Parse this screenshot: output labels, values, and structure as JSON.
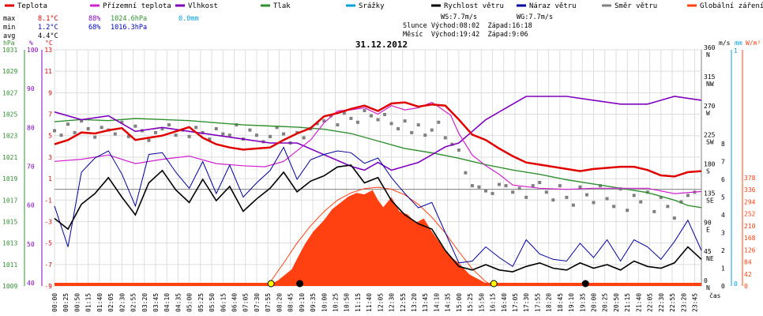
{
  "chart_data": {
    "type": "line",
    "title": "31.12.2012",
    "legend": [
      {
        "name": "Teplota",
        "color": "#e00000"
      },
      {
        "name": "Přízemní teplota",
        "color": "#d020d0"
      },
      {
        "name": "Vlhkost",
        "color": "#8000c0"
      },
      {
        "name": "Tlak",
        "color": "#309030"
      },
      {
        "name": "Srážky",
        "color": "#00a0e0"
      },
      {
        "name": "Rychlost větru",
        "color": "#000000"
      },
      {
        "name": "Náraz větru",
        "color": "#0000a0"
      },
      {
        "name": "Směr větru",
        "color": "#808080"
      },
      {
        "name": "Globální záření",
        "color": "#ff4010"
      }
    ],
    "stats": {
      "max": {
        "label": "max",
        "temp": "8.1°C",
        "hum": "88%",
        "press": "1024.6hPa",
        "rain": "0.0mm"
      },
      "min": {
        "label": "min",
        "temp": "1.2°C",
        "hum": "68%",
        "press": "1016.3hPa"
      },
      "avg": {
        "label": "avg",
        "temp": "4.4°C"
      }
    },
    "info": {
      "ws": "WS:7.7m/s",
      "wg": "WG:7.7m/s",
      "sun": "Slunce Východ:08:02  Západ:16:18",
      "moon": "Měsíc  Východ:19:42  Západ:9:06"
    },
    "axes": {
      "hpa": {
        "unit": "hPa",
        "ticks": [
          "1031",
          "1029",
          "1027",
          "1025",
          "1023",
          "1021",
          "1019",
          "1017",
          "1015",
          "1013",
          "1011",
          "1009"
        ]
      },
      "pct": {
        "unit": "%",
        "ticks": [
          "100",
          "90",
          "80",
          "70",
          "60",
          "50",
          "40"
        ]
      },
      "degc": {
        "unit": "°C",
        "ticks": [
          "13",
          "11",
          "9",
          "7",
          "5",
          "3",
          "1",
          "-1",
          "-3",
          "-5",
          "-7",
          "-9"
        ]
      },
      "dir": {
        "ticks": [
          {
            "deg": "360",
            "dir": "N"
          },
          {
            "deg": "315",
            "dir": "NW"
          },
          {
            "deg": "270",
            "dir": "W"
          },
          {
            "deg": "225",
            "dir": "SW"
          },
          {
            "deg": "180",
            "dir": "S"
          },
          {
            "deg": "135",
            "dir": "SE"
          },
          {
            "deg": "90",
            "dir": "E"
          },
          {
            "deg": "45",
            "dir": "NE"
          },
          {
            "deg": "0",
            "dir": "N"
          }
        ]
      },
      "ms": {
        "unit": "m/s",
        "ticks": [
          "8",
          "7",
          "6",
          "5",
          "4",
          "3",
          "2",
          "1",
          "0"
        ]
      },
      "mm": {
        "unit": "mm",
        "ticks": [
          "1",
          "0"
        ]
      },
      "wm2": {
        "unit": "W/m²",
        "ticks": [
          "378",
          "336",
          "294",
          "252",
          "210",
          "168",
          "126",
          "84",
          "42",
          "0"
        ]
      },
      "time_label": "čas",
      "time_ticks": [
        "00:00",
        "00:25",
        "00:50",
        "01:15",
        "01:40",
        "02:05",
        "02:30",
        "02:55",
        "03:20",
        "03:45",
        "04:10",
        "04:35",
        "05:00",
        "05:25",
        "05:50",
        "06:15",
        "06:40",
        "07:05",
        "07:30",
        "07:55",
        "08:20",
        "08:45",
        "09:10",
        "09:35",
        "10:00",
        "10:25",
        "10:50",
        "11:15",
        "11:40",
        "12:05",
        "12:30",
        "12:55",
        "13:20",
        "13:45",
        "14:10",
        "14:35",
        "15:00",
        "15:25",
        "15:50",
        "16:15",
        "16:40",
        "17:05",
        "17:30",
        "17:55",
        "18:20",
        "18:45",
        "19:10",
        "19:35",
        "20:00",
        "20:25",
        "20:50",
        "21:15",
        "21:40",
        "22:05",
        "22:30",
        "22:55",
        "23:20",
        "23:45"
      ]
    },
    "series": {
      "temperature_c": {
        "x_hours": [
          0,
          0.5,
          1,
          1.5,
          2,
          2.5,
          3,
          3.5,
          4,
          4.5,
          5,
          5.5,
          6,
          6.5,
          7,
          7.5,
          8,
          8.5,
          9,
          9.5,
          10,
          10.5,
          11,
          11.5,
          12,
          12.5,
          13,
          13.5,
          14,
          14.5,
          15,
          15.5,
          16,
          16.5,
          17,
          17.5,
          18,
          18.5,
          19,
          19.5,
          20,
          20.5,
          21,
          21.5,
          22,
          22.5,
          23,
          23.5,
          24
        ],
        "values": [
          4.2,
          4.6,
          5.3,
          5.2,
          5.5,
          5.7,
          4.6,
          4.8,
          5.0,
          5.4,
          5.8,
          4.8,
          4.2,
          3.9,
          3.7,
          3.8,
          3.9,
          4.6,
          5.2,
          5.7,
          6.8,
          7.1,
          7.5,
          7.8,
          7.3,
          8.0,
          8.1,
          7.7,
          7.9,
          7.8,
          6.5,
          5.1,
          4.6,
          3.8,
          3.1,
          2.5,
          2.3,
          2.1,
          1.9,
          1.7,
          1.9,
          2.0,
          2.1,
          2.1,
          1.8,
          1.3,
          1.2,
          1.6,
          1.7
        ]
      },
      "ground_temp_c": {
        "x_hours": [
          0,
          1,
          2,
          3,
          4,
          5,
          6,
          7,
          7.8,
          8.5,
          9,
          9.5,
          10,
          10.5,
          11,
          11.5,
          12,
          12.5,
          13,
          13.5,
          14,
          14.3,
          14.7,
          15,
          15.5,
          16,
          16.5,
          17,
          18,
          19,
          20,
          21,
          22,
          23,
          24
        ],
        "values": [
          2.6,
          2.8,
          3.2,
          2.4,
          2.8,
          3.1,
          2.4,
          2.2,
          2.1,
          2.6,
          3.6,
          4.6,
          6.2,
          7.3,
          7.4,
          7.6,
          7.0,
          7.8,
          7.4,
          7.6,
          8.1,
          7.6,
          6.9,
          5.2,
          3.2,
          2.2,
          1.4,
          0.4,
          0.1,
          0.0,
          0.1,
          0.1,
          0.1,
          -0.4,
          -0.2
        ]
      },
      "humidity_pct": {
        "x_hours": [
          0,
          1,
          2,
          3,
          4,
          5,
          6,
          7,
          8,
          9,
          10,
          11,
          11.5,
          12,
          12.5,
          13,
          13.5,
          14,
          14.5,
          15,
          15.5,
          16,
          17,
          17.5,
          18,
          19,
          20,
          21,
          22,
          22.5,
          23,
          24
        ],
        "values": [
          84,
          82,
          83,
          79,
          80,
          79,
          78,
          77,
          76,
          76,
          73,
          70,
          69,
          71,
          69,
          70,
          71,
          73,
          75,
          76,
          79,
          82,
          86,
          88,
          88,
          88,
          87,
          86,
          86,
          87,
          88,
          87
        ]
      },
      "pressure_hpa": {
        "x_hours": [
          0,
          1,
          2,
          3,
          4,
          5,
          6,
          7,
          8,
          9,
          10,
          11,
          12,
          13,
          14,
          15,
          16,
          17,
          18,
          19,
          20,
          21,
          22,
          23,
          23.5,
          24
        ],
        "values": [
          1024.3,
          1024.5,
          1024.4,
          1024.6,
          1024.5,
          1024.4,
          1024.2,
          1024.0,
          1023.9,
          1023.8,
          1023.6,
          1023.2,
          1022.5,
          1021.8,
          1021.4,
          1020.9,
          1020.3,
          1019.8,
          1019.4,
          1018.9,
          1018.5,
          1018.1,
          1017.7,
          1017.0,
          1016.5,
          1016.3
        ]
      },
      "wind_speed_ms": {
        "x_hours": [
          0,
          0.5,
          1,
          1.5,
          2,
          2.5,
          3,
          3.5,
          4,
          4.5,
          5,
          5.5,
          6,
          6.5,
          7,
          7.5,
          8,
          8.5,
          9,
          9.5,
          10,
          10.5,
          11,
          11.5,
          12,
          12.5,
          13,
          13.5,
          14,
          14.5,
          15,
          15.5,
          16,
          16.5,
          17,
          17.5,
          18,
          18.5,
          19,
          19.5,
          20,
          20.5,
          21,
          21.5,
          22,
          22.5,
          23,
          23.5,
          24
        ],
        "values": [
          3.8,
          3.2,
          4.6,
          5.2,
          6.1,
          5.0,
          4.0,
          5.8,
          6.5,
          5.4,
          4.7,
          6.0,
          4.8,
          5.6,
          4.2,
          4.9,
          5.5,
          6.4,
          5.3,
          5.9,
          6.2,
          6.7,
          6.8,
          5.8,
          6.1,
          4.8,
          4.0,
          3.5,
          3.2,
          2.0,
          1.1,
          0.9,
          1.2,
          0.9,
          0.8,
          1.1,
          1.3,
          1.0,
          0.9,
          1.3,
          1.0,
          1.2,
          0.9,
          1.4,
          1.1,
          1.0,
          1.3,
          2.2,
          1.5
        ]
      },
      "wind_gust_ms": {
        "x_hours": [
          0,
          0.5,
          1,
          1.5,
          2,
          2.5,
          3,
          3.5,
          4,
          4.5,
          5,
          5.5,
          6,
          6.5,
          7,
          7.5,
          8,
          8.5,
          9,
          9.5,
          10,
          10.5,
          11,
          11.5,
          12,
          12.5,
          13,
          13.5,
          14,
          14.5,
          15,
          15.5,
          16,
          16.5,
          17,
          17.5,
          18,
          18.5,
          19,
          19.5,
          20,
          20.5,
          21,
          21.5,
          22,
          22.5,
          23,
          23.5,
          24
        ],
        "values": [
          4.5,
          2.2,
          6.4,
          7.2,
          7.6,
          6.3,
          4.5,
          7.4,
          7.5,
          6.4,
          5.5,
          7.0,
          5.2,
          6.8,
          5.0,
          5.8,
          6.5,
          7.8,
          6.0,
          7.1,
          7.4,
          7.6,
          7.5,
          6.9,
          7.2,
          6.1,
          5.2,
          4.4,
          4.7,
          3.0,
          1.3,
          1.4,
          2.2,
          1.6,
          1.1,
          2.6,
          1.8,
          1.5,
          1.4,
          2.4,
          1.6,
          2.6,
          1.4,
          2.6,
          2.2,
          1.5,
          2.5,
          3.7,
          2.0
        ]
      },
      "wind_dir_deg": {
        "x_hours": [
          0,
          0.25,
          0.5,
          0.75,
          1,
          1.25,
          1.5,
          1.75,
          2,
          2.25,
          2.5,
          2.75,
          3,
          3.25,
          3.5,
          3.75,
          4,
          4.25,
          4.5,
          4.75,
          5,
          5.25,
          5.5,
          5.75,
          6,
          6.25,
          6.5,
          6.75,
          7,
          7.25,
          7.5,
          7.75,
          8,
          8.25,
          8.5,
          8.75,
          9,
          9.25,
          9.5,
          9.75,
          10,
          10.25,
          10.5,
          10.75,
          11,
          11.25,
          11.5,
          11.75,
          12,
          12.25,
          12.5,
          12.75,
          13,
          13.25,
          13.5,
          13.75,
          14,
          14.25,
          14.5,
          14.75,
          15,
          15.25,
          15.5,
          15.75,
          16,
          16.25,
          16.5,
          16.75,
          17,
          17.25,
          17.5,
          17.75,
          18,
          18.25,
          18.5,
          18.75,
          19,
          19.25,
          19.5,
          19.75,
          20,
          20.25,
          20.5,
          20.75,
          21,
          21.25,
          21.5,
          21.75,
          22,
          22.25,
          22.5,
          22.75,
          23,
          23.25,
          23.5,
          23.75
        ],
        "values": [
          235,
          228,
          245,
          232,
          250,
          238,
          225,
          240,
          236,
          230,
          248,
          226,
          242,
          235,
          220,
          232,
          238,
          244,
          228,
          236,
          226,
          240,
          232,
          222,
          238,
          230,
          228,
          244,
          222,
          236,
          228,
          218,
          226,
          240,
          230,
          216,
          232,
          224,
          238,
          246,
          250,
          258,
          244,
          262,
          254,
          248,
          266,
          258,
          252,
          260,
          246,
          238,
          250,
          232,
          244,
          228,
          236,
          248,
          224,
          214,
          205,
          170,
          150,
          148,
          142,
          138,
          152,
          150,
          140,
          146,
          132,
          150,
          155,
          140,
          128,
          150,
          132,
          120,
          148,
          136,
          124,
          150,
          130,
          118,
          145,
          112,
          135,
          125,
          140,
          110,
          132,
          118,
          100,
          125,
          135,
          140
        ]
      },
      "radiation_wm2": {
        "x_hours": [
          0,
          7.9,
          8.3,
          8.8,
          9.0,
          9.3,
          9.6,
          10.0,
          10.3,
          10.6,
          10.9,
          11.2,
          11.5,
          11.8,
          12.0,
          12.2,
          12.5,
          12.8,
          13.1,
          13.4,
          13.7,
          14.0,
          14.3,
          14.6,
          15.0,
          15.4,
          16.0,
          16.3,
          24
        ],
        "values": [
          0,
          0,
          20,
          58,
          95,
          148,
          190,
          230,
          268,
          290,
          312,
          325,
          320,
          335,
          300,
          275,
          310,
          260,
          250,
          220,
          236,
          190,
          150,
          110,
          80,
          40,
          10,
          0,
          0
        ]
      },
      "radiation_max_wm2": {
        "x_hours": [
          7.9,
          8.5,
          9.0,
          9.5,
          10.0,
          10.5,
          11.0,
          11.5,
          12.0,
          12.5,
          13.0,
          13.5,
          14.0,
          14.5,
          15.0,
          15.5,
          16.0,
          16.3
        ],
        "values": [
          0,
          80,
          150,
          210,
          260,
          300,
          325,
          340,
          345,
          338,
          318,
          285,
          240,
          185,
          120,
          60,
          15,
          0
        ]
      },
      "rain_mm": {
        "x_hours": [
          0,
          24
        ],
        "values": [
          0.0,
          0.0
        ]
      }
    }
  }
}
